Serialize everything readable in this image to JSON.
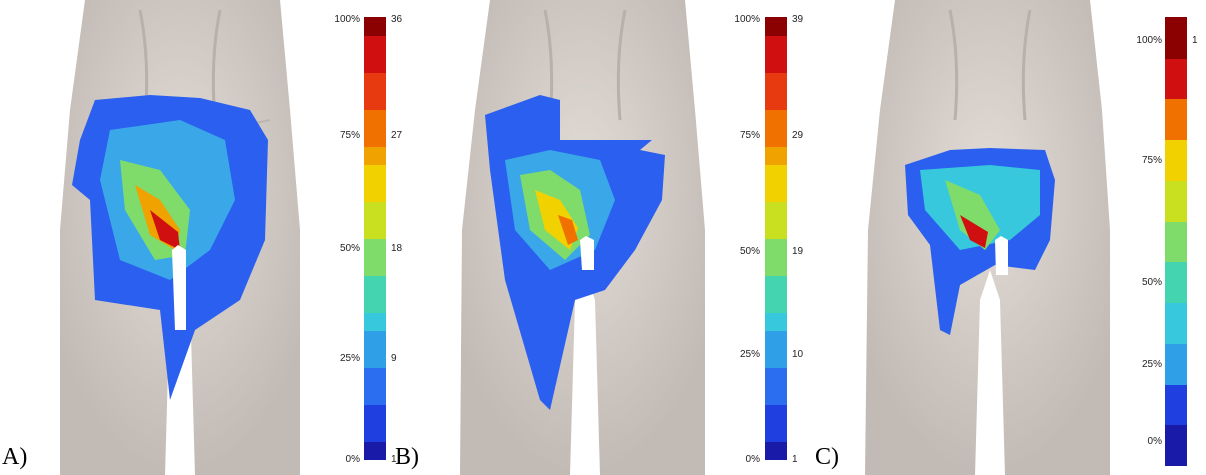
{
  "panels": [
    {
      "letter": "A)",
      "colorbar": {
        "percent_ticks": [
          "100%",
          "75%",
          "50%",
          "25%",
          "0%"
        ],
        "value_ticks": [
          "36",
          "27",
          "18",
          "9",
          "1"
        ]
      }
    },
    {
      "letter": "B)",
      "colorbar": {
        "percent_ticks": [
          "100%",
          "75%",
          "50%",
          "25%",
          "0%"
        ],
        "value_ticks": [
          "39",
          "29",
          "19",
          "10",
          "1"
        ]
      }
    },
    {
      "letter": "C)",
      "colorbar": {
        "percent_ticks": [
          "100%",
          "75%",
          "50%",
          "25%",
          "0%"
        ],
        "value_ticks": [
          "1"
        ]
      }
    }
  ],
  "colormap": [
    "#1a1aa8",
    "#1f3fe0",
    "#2b6ef0",
    "#2f9fe8",
    "#38c8dd",
    "#44d4b0",
    "#7fdc6a",
    "#c8e020",
    "#f2d100",
    "#f0a200",
    "#f07000",
    "#e83a10",
    "#d01010",
    "#8b0000"
  ],
  "colors": {
    "skin": "#d6cfc9",
    "skin_shadow": "#b8b0aa",
    "background": "#ffffff"
  }
}
